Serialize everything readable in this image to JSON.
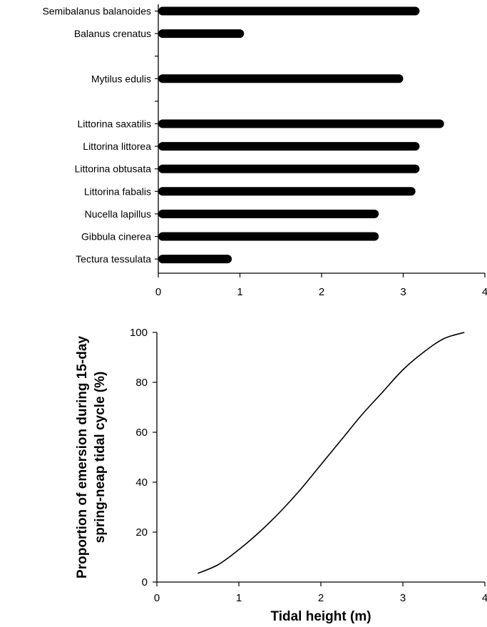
{
  "chart_data": [
    {
      "type": "bar",
      "orientation": "horizontal",
      "categories": [
        "Semibalanus balanoides",
        "Balanus crenatus",
        "",
        "Mytilus edulis",
        "",
        "Littorina saxatilis",
        "Littorina littorea",
        "Littorina obtusata",
        "Littorina fabalis",
        "Nucella lapillus",
        "Gibbula cinerea",
        "Tectura tessulata"
      ],
      "values": [
        3.2,
        1.05,
        null,
        3.0,
        null,
        3.5,
        3.2,
        3.2,
        3.15,
        2.7,
        2.7,
        0.9
      ],
      "bar_start": 0,
      "xlim": [
        0,
        4
      ],
      "xticks": [
        "0",
        "1",
        "2",
        "3",
        "4"
      ],
      "xlabel": "",
      "ylabel": "",
      "grid": false,
      "colors": {
        "bar": "#000000"
      }
    },
    {
      "type": "line",
      "x": [
        0.5,
        0.75,
        1.0,
        1.25,
        1.5,
        1.75,
        2.0,
        2.25,
        2.5,
        2.75,
        3.0,
        3.25,
        3.5,
        3.75
      ],
      "series": [
        {
          "values": [
            3.5,
            7,
            13,
            20,
            28,
            37,
            47,
            57,
            67,
            76,
            85,
            92,
            97.5,
            100
          ]
        }
      ],
      "xlim": [
        0,
        4
      ],
      "ylim": [
        0,
        100
      ],
      "xticks": [
        "0",
        "1",
        "2",
        "3",
        "4"
      ],
      "yticks": [
        "0",
        "20",
        "40",
        "60",
        "80",
        "100"
      ],
      "xlabel": "Tidal height (m)",
      "ylabel": [
        "Proportion of emersion during 15-day",
        "spring-neap tidal cycle (%)"
      ],
      "grid": false,
      "colors": {
        "line": "#000000"
      }
    }
  ]
}
